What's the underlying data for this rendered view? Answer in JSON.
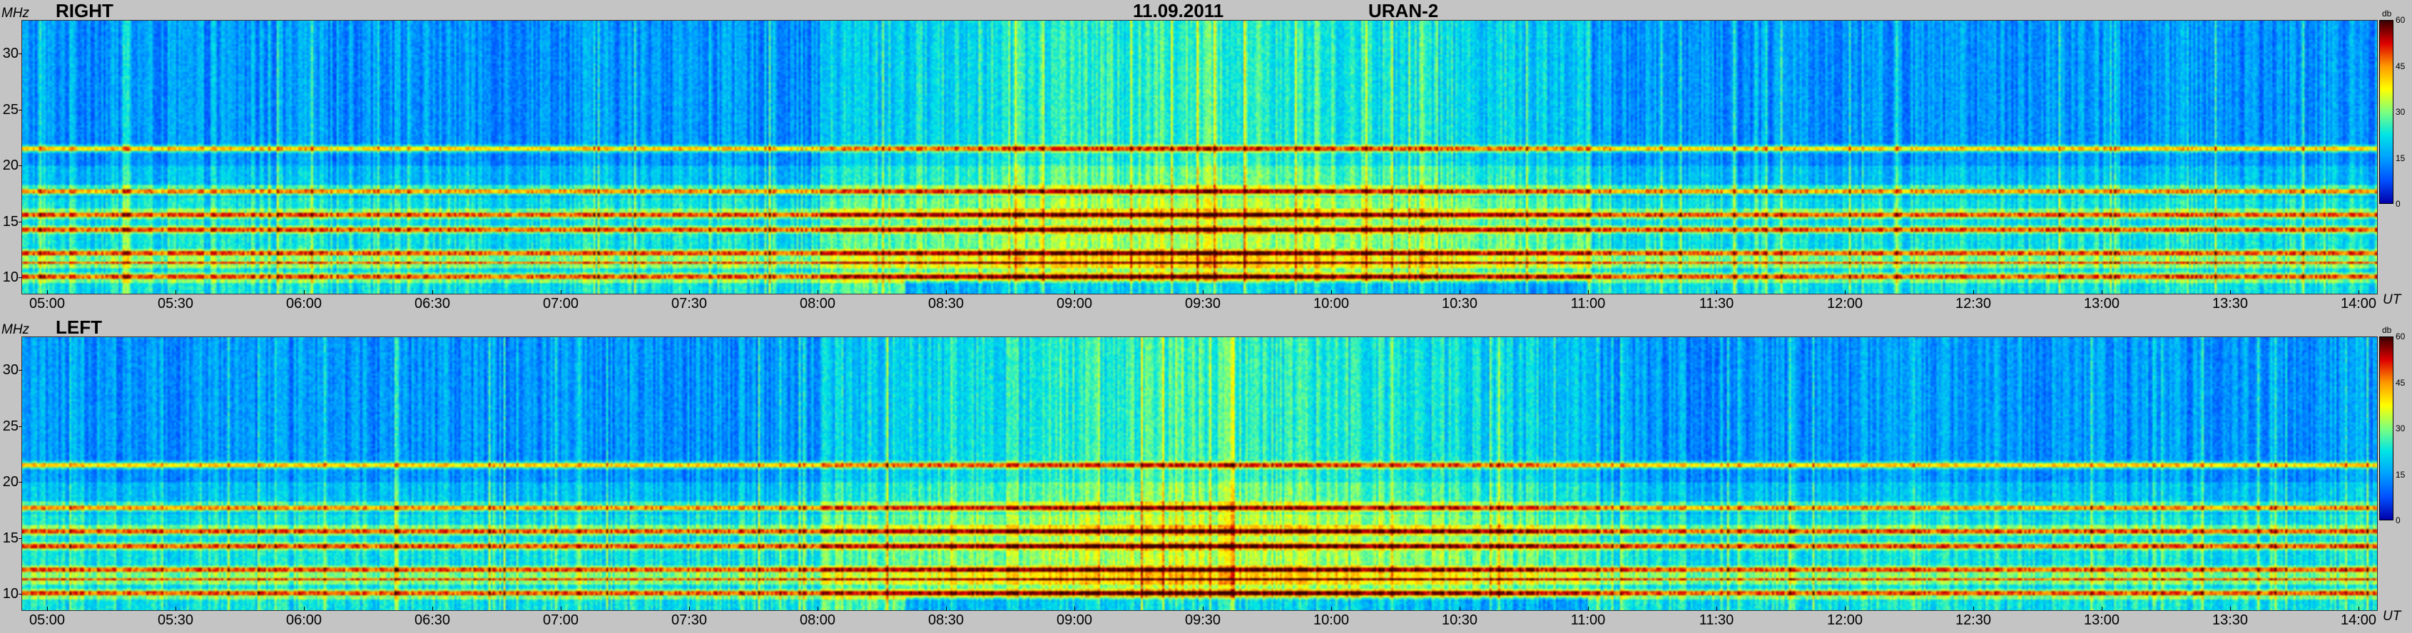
{
  "header": {
    "date": "11.09.2011",
    "instrument": "URAN-2"
  },
  "axes": {
    "y_unit": "MHz",
    "x_unit": "UT",
    "colorbar_unit": "db"
  },
  "colors": {
    "background": "#c4c4c4",
    "colormap": [
      "#0000aa",
      "#0050ff",
      "#00a0ff",
      "#00e5e5",
      "#7dff7d",
      "#ffff00",
      "#ff9900",
      "#dd0000",
      "#3a0000"
    ]
  },
  "chart_data": [
    {
      "type": "heatmap",
      "title": "RIGHT",
      "xlabel": "UT",
      "ylabel": "MHz",
      "x_ticks": [
        "05:00",
        "05:30",
        "06:00",
        "06:30",
        "07:00",
        "07:30",
        "08:00",
        "08:30",
        "09:00",
        "09:30",
        "10:00",
        "10:30",
        "11:00",
        "11:30",
        "12:00",
        "12:30",
        "13:00",
        "13:30",
        "14:00"
      ],
      "y_ticks": [
        10,
        15,
        20,
        25,
        30
      ],
      "ylim": [
        8.5,
        33
      ],
      "colorbar": {
        "label": "db",
        "ticks": [
          0,
          15,
          30,
          45,
          60
        ],
        "range": [
          0,
          60
        ]
      },
      "features": {
        "background_level_db": 18,
        "enhanced_period_db": {
          "from": "08:00",
          "to": "11:00",
          "level": 30
        },
        "interference_lines_mhz": [
          9.9,
          11.2,
          12,
          14.2,
          15.6,
          17.7,
          21.5
        ]
      }
    },
    {
      "type": "heatmap",
      "title": "LEFT",
      "xlabel": "UT",
      "ylabel": "MHz",
      "x_ticks": [
        "05:00",
        "05:30",
        "06:00",
        "06:30",
        "07:00",
        "07:30",
        "08:00",
        "08:30",
        "09:00",
        "09:30",
        "10:00",
        "10:30",
        "11:00",
        "11:30",
        "12:00",
        "12:30",
        "13:00",
        "13:30",
        "14:00"
      ],
      "y_ticks": [
        10,
        15,
        20,
        25,
        30
      ],
      "ylim": [
        8.5,
        33
      ],
      "colorbar": {
        "label": "db",
        "ticks": [
          0,
          15,
          30,
          45,
          60
        ],
        "range": [
          0,
          60
        ]
      },
      "features": {
        "background_level_db": 18,
        "enhanced_period_db": {
          "from": "08:00",
          "to": "11:00",
          "level": 30
        },
        "interference_lines_mhz": [
          9.9,
          11.2,
          12,
          14.2,
          15.6,
          17.7,
          21.5
        ]
      }
    }
  ]
}
